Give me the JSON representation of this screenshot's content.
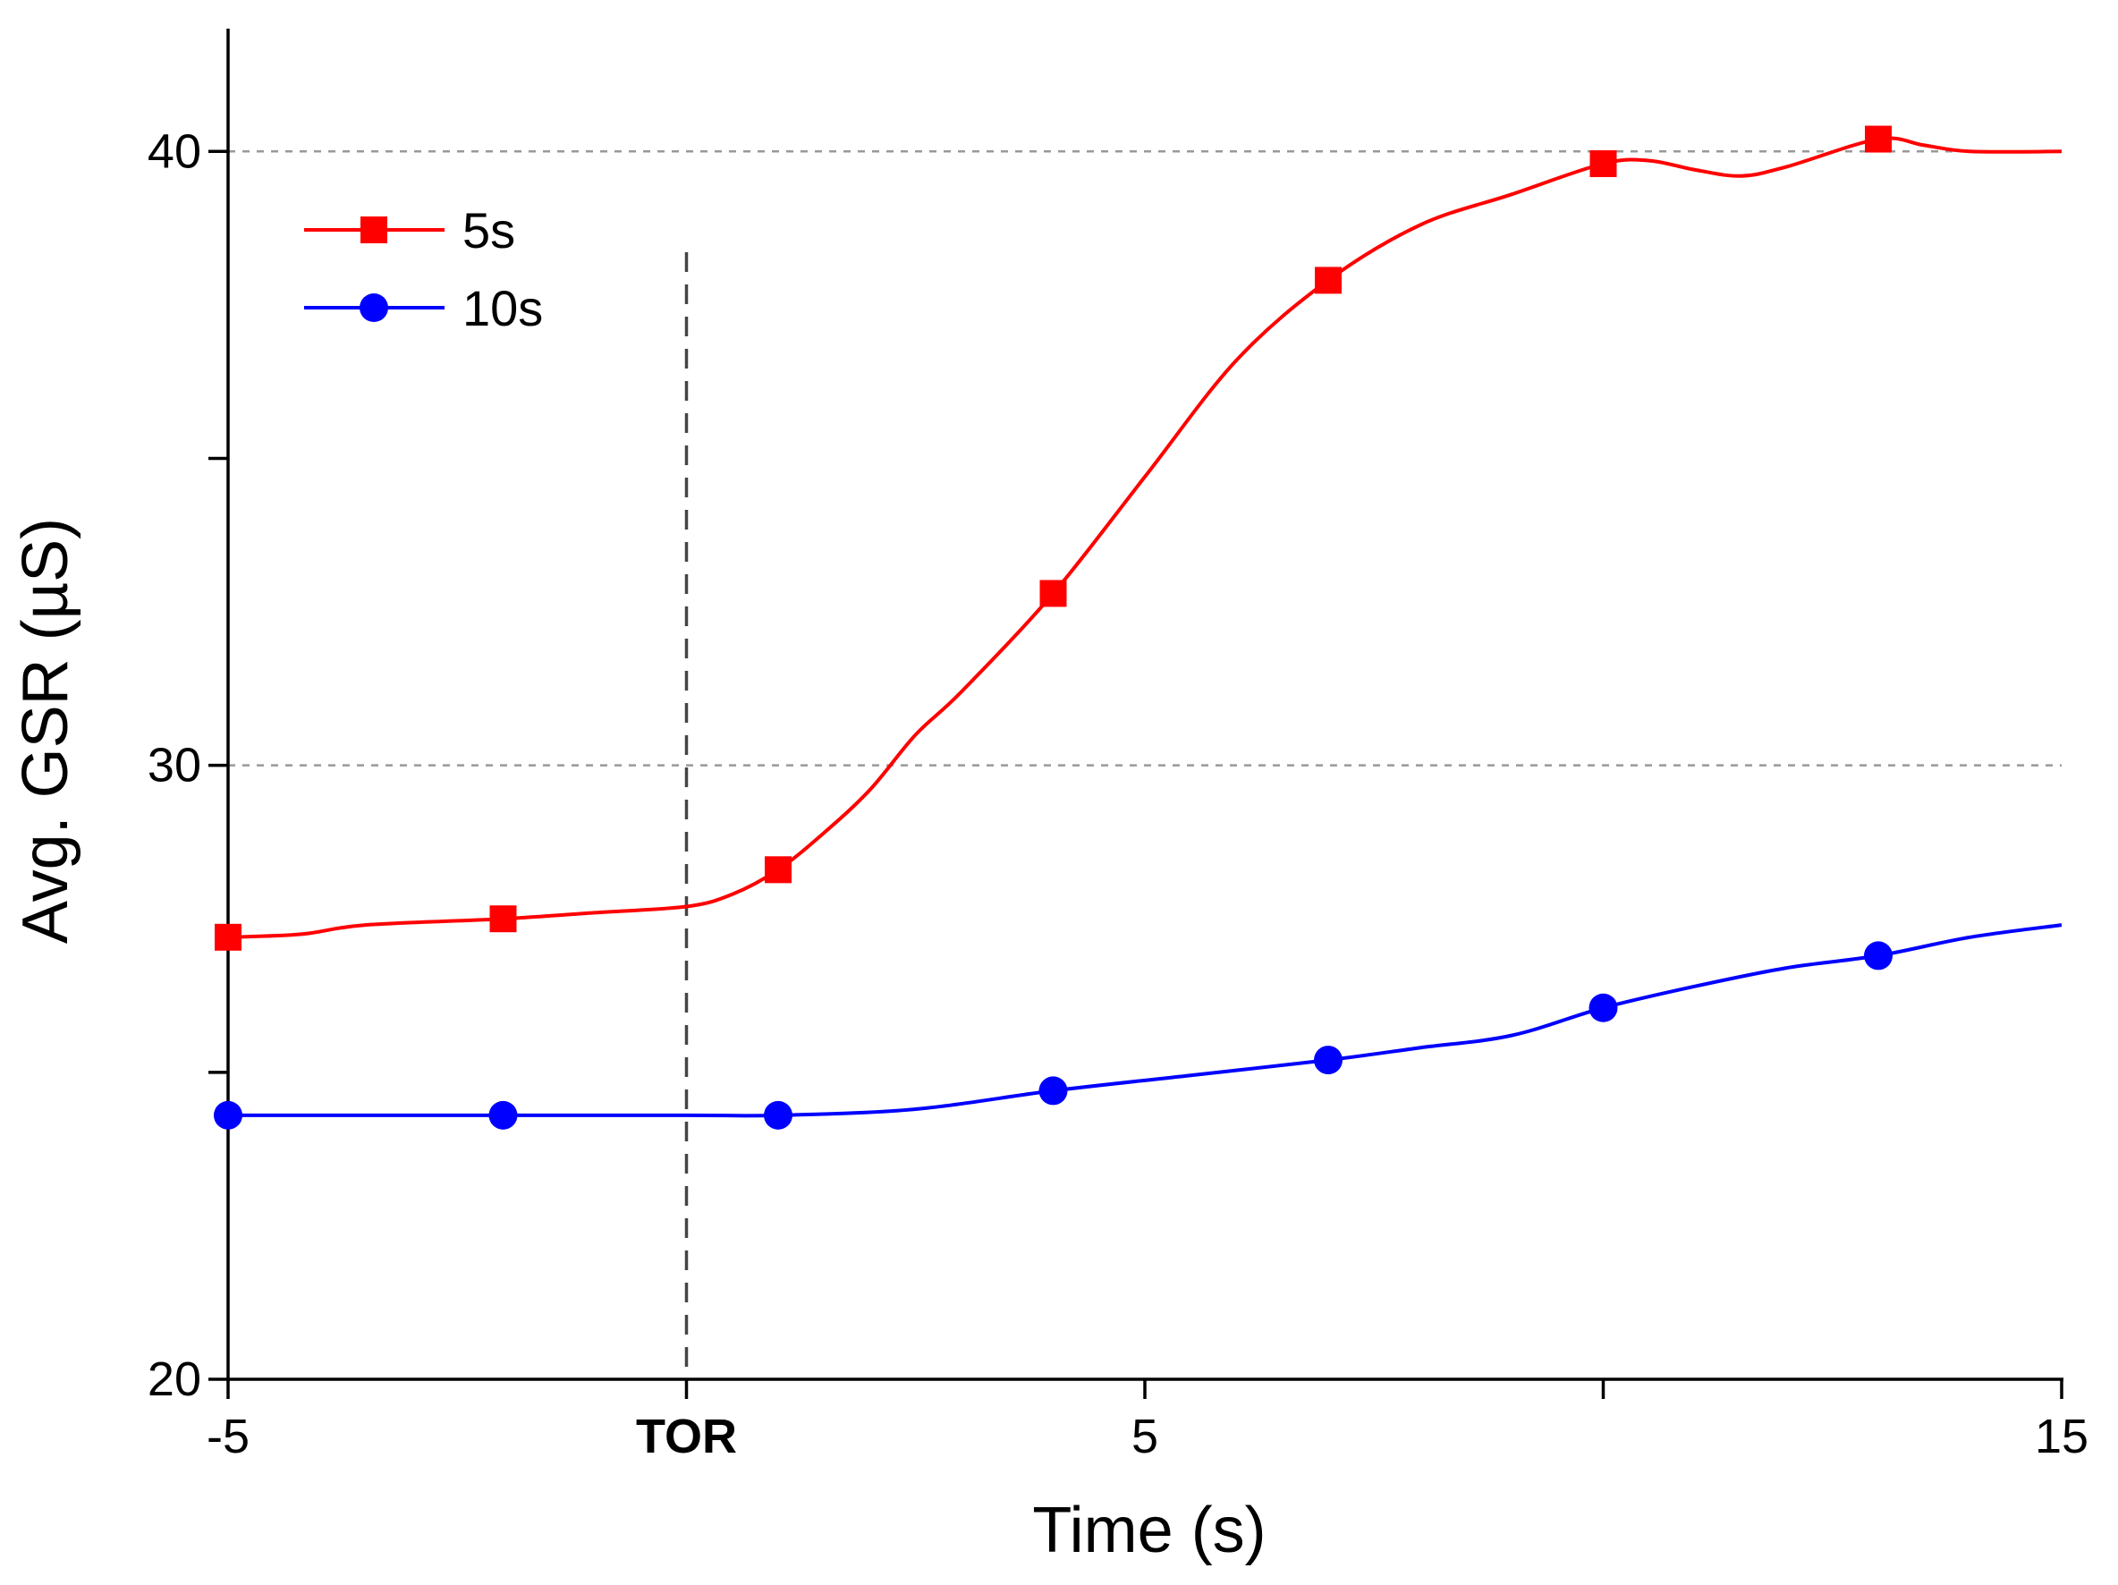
{
  "chart_data": {
    "type": "line",
    "title": "",
    "xlabel": "Time (s)",
    "ylabel": "Avg. GSR (µS)",
    "xlim": [
      -5,
      15
    ],
    "ylim": [
      20,
      42
    ],
    "x_ticks": [
      {
        "value": -5,
        "label": "-5",
        "bold": false
      },
      {
        "value": 0,
        "label": "TOR",
        "bold": true
      },
      {
        "value": 5,
        "label": "5",
        "bold": false
      },
      {
        "value": 10,
        "label": "",
        "bold": false
      },
      {
        "value": 15,
        "label": "15",
        "bold": false
      }
    ],
    "y_ticks": [
      {
        "value": 20,
        "label": "20"
      },
      {
        "value": 25,
        "label": ""
      },
      {
        "value": 30,
        "label": "30"
      },
      {
        "value": 35,
        "label": ""
      },
      {
        "value": 40,
        "label": "40"
      }
    ],
    "gridlines_y": [
      30,
      40
    ],
    "reference_line_x": 0,
    "legend_position": "top-left",
    "series": [
      {
        "name": "5s",
        "color": "#ff0000",
        "marker": "square",
        "curve": [
          [
            -5,
            27.2
          ],
          [
            -4.2,
            27.25
          ],
          [
            -3.5,
            27.4
          ],
          [
            -2,
            27.5
          ],
          [
            -1,
            27.6
          ],
          [
            0,
            27.7
          ],
          [
            0.5,
            27.9
          ],
          [
            1,
            28.3
          ],
          [
            1.5,
            28.9
          ],
          [
            2,
            29.6
          ],
          [
            2.5,
            30.5
          ],
          [
            3,
            31.2
          ],
          [
            4,
            32.8
          ],
          [
            5,
            34.7
          ],
          [
            6,
            36.6
          ],
          [
            7,
            37.9
          ],
          [
            8,
            38.8
          ],
          [
            9,
            39.3
          ],
          [
            10,
            39.8
          ],
          [
            10.5,
            39.85
          ],
          [
            11,
            39.7
          ],
          [
            11.5,
            39.6
          ],
          [
            12,
            39.75
          ],
          [
            13,
            40.2
          ],
          [
            13.5,
            40.1
          ],
          [
            14,
            40.0
          ],
          [
            15,
            40.0
          ]
        ],
        "markers_x": [
          -5,
          -2,
          1,
          4,
          7,
          10,
          13
        ],
        "markers_y": [
          27.2,
          27.5,
          28.3,
          32.8,
          37.9,
          39.8,
          40.2
        ]
      },
      {
        "name": "10s",
        "color": "#0000ff",
        "marker": "circle",
        "curve": [
          [
            -5,
            24.3
          ],
          [
            -2,
            24.3
          ],
          [
            0,
            24.3
          ],
          [
            1,
            24.3
          ],
          [
            2.5,
            24.4
          ],
          [
            4,
            24.7
          ],
          [
            5.5,
            24.95
          ],
          [
            7,
            25.2
          ],
          [
            8,
            25.4
          ],
          [
            9,
            25.6
          ],
          [
            10,
            26.05
          ],
          [
            11,
            26.4
          ],
          [
            12,
            26.7
          ],
          [
            13,
            26.9
          ],
          [
            14,
            27.2
          ],
          [
            15,
            27.4
          ]
        ],
        "markers_x": [
          -5,
          -2,
          1,
          4,
          7,
          10,
          13
        ],
        "markers_y": [
          24.3,
          24.3,
          24.3,
          24.7,
          25.2,
          26.05,
          26.9
        ]
      }
    ]
  }
}
